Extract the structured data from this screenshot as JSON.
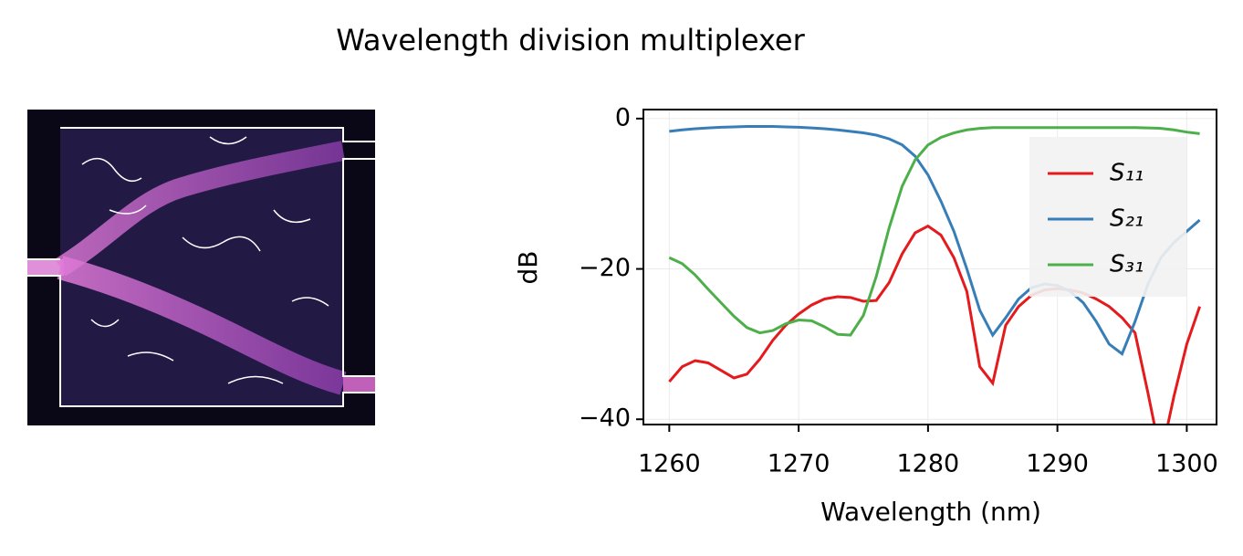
{
  "chart_data": {
    "type": "line",
    "title": "Wavelength division multiplexer",
    "xlabel": "Wavelength (nm)",
    "ylabel": "dB",
    "x": [
      1260,
      1261,
      1262,
      1263,
      1264,
      1265,
      1266,
      1267,
      1268,
      1269,
      1270,
      1271,
      1272,
      1273,
      1274,
      1275,
      1276,
      1277,
      1278,
      1279,
      1280,
      1281,
      1282,
      1283,
      1284,
      1285,
      1286,
      1287,
      1288,
      1289,
      1290,
      1291,
      1292,
      1293,
      1294,
      1295,
      1296,
      1297,
      1298,
      1299,
      1300,
      1301
    ],
    "series": [
      {
        "name": "S₁₁",
        "color": "#e41a1c",
        "values": [
          -35,
          -33,
          -32.2,
          -32.5,
          -33.5,
          -34.5,
          -34,
          -32,
          -29.5,
          -27.5,
          -26,
          -24.8,
          -24,
          -23.7,
          -23.8,
          -24.3,
          -24.2,
          -21.8,
          -18,
          -15.2,
          -14.3,
          -15.5,
          -18.5,
          -23,
          -33,
          -35.2,
          -27.5,
          -25,
          -23.5,
          -22.8,
          -22.6,
          -22.8,
          -23.2,
          -24,
          -25,
          -26.5,
          -28.5,
          -36.5,
          -45,
          -37,
          -30,
          -25
        ]
      },
      {
        "name": "S₂₁",
        "color": "#377eb8",
        "values": [
          -1.7,
          -1.5,
          -1.35,
          -1.25,
          -1.15,
          -1.1,
          -1.05,
          -1.05,
          -1.05,
          -1.1,
          -1.15,
          -1.25,
          -1.35,
          -1.5,
          -1.7,
          -1.9,
          -2.2,
          -2.7,
          -3.5,
          -5,
          -7.5,
          -11,
          -15,
          -20,
          -25.5,
          -28.8,
          -26.5,
          -24,
          -22.5,
          -22,
          -22.2,
          -23,
          -24.5,
          -27,
          -30,
          -31.3,
          -27,
          -22,
          -18.5,
          -16.5,
          -15,
          -13.5
        ]
      },
      {
        "name": "S₃₁",
        "color": "#4daf4a",
        "values": [
          -18.5,
          -19.3,
          -20.8,
          -22.7,
          -24.5,
          -26.3,
          -27.8,
          -28.5,
          -28.2,
          -27.3,
          -26.8,
          -26.9,
          -27.7,
          -28.7,
          -28.8,
          -26.2,
          -21,
          -14.5,
          -9,
          -5.5,
          -3.5,
          -2.5,
          -1.9,
          -1.5,
          -1.3,
          -1.2,
          -1.2,
          -1.2,
          -1.2,
          -1.2,
          -1.2,
          -1.2,
          -1.2,
          -1.2,
          -1.2,
          -1.2,
          -1.2,
          -1.25,
          -1.3,
          -1.5,
          -1.8,
          -2
        ]
      }
    ],
    "xlim": [
      1258,
      1302.3
    ],
    "ylim": [
      -40.7,
      1.2
    ],
    "xticks": [
      1260,
      1270,
      1280,
      1290,
      1300
    ],
    "yticks": [
      0,
      {
        "value": -20,
        "label": "−20"
      },
      {
        "value": -40,
        "label": "−40"
      }
    ],
    "grid": true,
    "legend": "upper right"
  }
}
